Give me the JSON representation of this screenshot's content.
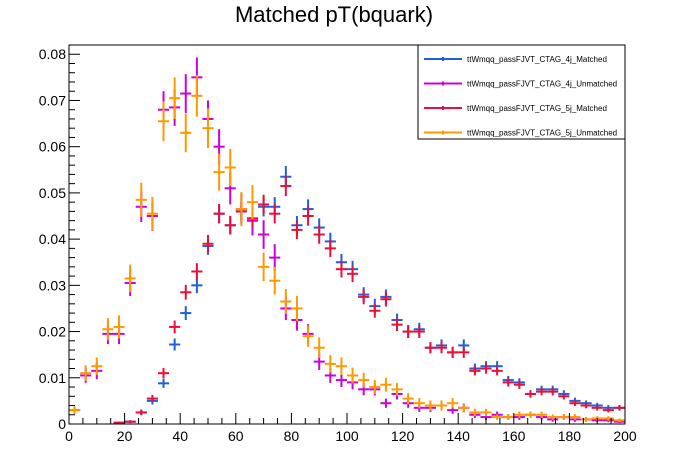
{
  "chart_data": {
    "type": "scatter",
    "title": "Matched pT(bquark)",
    "xlabel": "",
    "ylabel": "",
    "xlim": [
      0,
      200
    ],
    "ylim": [
      0,
      0.082
    ],
    "xticks": [
      "0",
      "20",
      "40",
      "60",
      "80",
      "100",
      "120",
      "140",
      "160",
      "180",
      "200"
    ],
    "yticks": [
      "0",
      "0.01",
      "0.02",
      "0.03",
      "0.04",
      "0.05",
      "0.06",
      "0.07",
      "0.08"
    ],
    "bin_width": 4,
    "legend_position": "top-right",
    "grid": false,
    "series": [
      {
        "name": "ttWmqq_passFJVT_CTAG_4j_Matched",
        "color": "#1f5fdc",
        "x": [
          22,
          26,
          30,
          34,
          38,
          42,
          46,
          50,
          54,
          58,
          62,
          66,
          70,
          74,
          78,
          82,
          86,
          90,
          94,
          98,
          102,
          106,
          110,
          114,
          118,
          122,
          126,
          130,
          134,
          138,
          142,
          146,
          150,
          154,
          158,
          162,
          166,
          170,
          174,
          178,
          182,
          186,
          190,
          194,
          198
        ],
        "y": [
          0.0005,
          0.0025,
          0.005,
          0.0088,
          0.0172,
          0.024,
          0.03,
          0.0385,
          0.0455,
          0.043,
          0.046,
          0.044,
          0.047,
          0.047,
          0.0535,
          0.043,
          0.0465,
          0.0425,
          0.0395,
          0.035,
          0.0335,
          0.028,
          0.0255,
          0.0275,
          0.0225,
          0.02,
          0.0205,
          0.0165,
          0.017,
          0.0155,
          0.017,
          0.012,
          0.0125,
          0.0125,
          0.0095,
          0.009,
          0.0065,
          0.0075,
          0.0075,
          0.0065,
          0.005,
          0.0045,
          0.004,
          0.0035,
          0.0035
        ],
        "err": [
          0.0003,
          0.0006,
          0.0008,
          0.001,
          0.0013,
          0.0015,
          0.0017,
          0.0019,
          0.0021,
          0.002,
          0.0021,
          0.002,
          0.0021,
          0.0021,
          0.0023,
          0.002,
          0.0021,
          0.002,
          0.0019,
          0.0018,
          0.0018,
          0.0016,
          0.0016,
          0.0016,
          0.0014,
          0.0014,
          0.0014,
          0.0012,
          0.0013,
          0.0012,
          0.0013,
          0.0011,
          0.0011,
          0.0011,
          0.0009,
          0.0009,
          0.0008,
          0.0008,
          0.0008,
          0.0008,
          0.0007,
          0.0006,
          0.0006,
          0.0006,
          0.0006
        ]
      },
      {
        "name": "ttWmqq_passFJVT_CTAG_4j_Unmatched",
        "color": "#cc00dd",
        "x": [
          2,
          6,
          10,
          14,
          18,
          22,
          26,
          30,
          34,
          38,
          42,
          46,
          50,
          54,
          58,
          62,
          66,
          70,
          74,
          78,
          82,
          86,
          90,
          94,
          98,
          102,
          106,
          110,
          114,
          118,
          122,
          126,
          130,
          134,
          138,
          142,
          146,
          150,
          154,
          158,
          162,
          166,
          170,
          174,
          178,
          182,
          186,
          190,
          194,
          198
        ],
        "y": [
          0.003,
          0.0105,
          0.0115,
          0.0195,
          0.0195,
          0.0305,
          0.047,
          0.045,
          0.068,
          0.0685,
          0.0715,
          0.075,
          0.066,
          0.06,
          0.051,
          0.0465,
          0.044,
          0.041,
          0.036,
          0.025,
          0.0225,
          0.0195,
          0.0135,
          0.0105,
          0.0095,
          0.009,
          0.0075,
          0.0075,
          0.0045,
          0.0065,
          0.0045,
          0.0035,
          0.0035,
          0.004,
          0.003,
          0.0035,
          0.002,
          0.0015,
          0.002,
          0.0015,
          0.0015,
          0.002,
          0.0015,
          0.001,
          0.0015,
          0.001,
          0.001,
          0.0008,
          0.0008,
          0.0005
        ],
        "err": [
          0.0008,
          0.0016,
          0.0018,
          0.0022,
          0.0022,
          0.0028,
          0.0033,
          0.0032,
          0.004,
          0.004,
          0.0042,
          0.0043,
          0.004,
          0.0038,
          0.0035,
          0.0033,
          0.0032,
          0.0031,
          0.0029,
          0.0025,
          0.0023,
          0.0021,
          0.0018,
          0.0016,
          0.0015,
          0.0015,
          0.0013,
          0.0013,
          0.001,
          0.0012,
          0.001,
          0.0009,
          0.0009,
          0.0009,
          0.0008,
          0.0009,
          0.0007,
          0.0006,
          0.0007,
          0.0006,
          0.0006,
          0.0007,
          0.0006,
          0.0005,
          0.0006,
          0.0005,
          0.0005,
          0.0004,
          0.0004,
          0.0003
        ]
      },
      {
        "name": "ttWmqq_passFJVT_CTAG_5j_Matched",
        "color": "#e8103a",
        "x": [
          18,
          22,
          26,
          30,
          34,
          38,
          42,
          46,
          50,
          54,
          58,
          62,
          66,
          70,
          74,
          78,
          82,
          86,
          90,
          94,
          98,
          102,
          106,
          110,
          114,
          118,
          122,
          126,
          130,
          134,
          138,
          142,
          146,
          150,
          154,
          158,
          162,
          166,
          170,
          174,
          178,
          182,
          186,
          190,
          194,
          198
        ],
        "y": [
          0.0003,
          0.0005,
          0.0025,
          0.0055,
          0.011,
          0.021,
          0.0285,
          0.033,
          0.039,
          0.0455,
          0.043,
          0.046,
          0.0445,
          0.0475,
          0.0455,
          0.0515,
          0.042,
          0.045,
          0.041,
          0.038,
          0.0335,
          0.0325,
          0.0275,
          0.0245,
          0.027,
          0.0215,
          0.02,
          0.02,
          0.0165,
          0.0165,
          0.0155,
          0.0155,
          0.0115,
          0.012,
          0.0115,
          0.009,
          0.0085,
          0.0065,
          0.007,
          0.007,
          0.006,
          0.0045,
          0.004,
          0.0035,
          0.003,
          0.0035
        ],
        "err": [
          0.0002,
          0.0003,
          0.0006,
          0.0008,
          0.0011,
          0.0014,
          0.0016,
          0.0018,
          0.0019,
          0.0021,
          0.002,
          0.0021,
          0.002,
          0.0021,
          0.0021,
          0.0022,
          0.002,
          0.0021,
          0.002,
          0.0019,
          0.0018,
          0.0018,
          0.0016,
          0.0015,
          0.0016,
          0.0014,
          0.0014,
          0.0014,
          0.0012,
          0.0012,
          0.0012,
          0.0012,
          0.001,
          0.0011,
          0.001,
          0.0009,
          0.0009,
          0.0008,
          0.0008,
          0.0008,
          0.0007,
          0.0006,
          0.0006,
          0.0006,
          0.0005,
          0.0006
        ]
      },
      {
        "name": "ttWmqq_passFJVT_CTAG_5j_Unmatched",
        "color": "#ff9900",
        "x": [
          2,
          6,
          10,
          14,
          18,
          22,
          26,
          30,
          34,
          38,
          42,
          46,
          50,
          54,
          58,
          62,
          66,
          70,
          74,
          78,
          82,
          86,
          90,
          94,
          98,
          102,
          106,
          110,
          114,
          118,
          122,
          126,
          130,
          134,
          138,
          142,
          146,
          150,
          154,
          158,
          162,
          166,
          170,
          174,
          178,
          182,
          186,
          190,
          194,
          198
        ],
        "y": [
          0.003,
          0.011,
          0.0125,
          0.0205,
          0.021,
          0.0315,
          0.0485,
          0.0455,
          0.0655,
          0.0705,
          0.063,
          0.071,
          0.064,
          0.0545,
          0.0555,
          0.0465,
          0.048,
          0.034,
          0.031,
          0.0265,
          0.025,
          0.019,
          0.0165,
          0.013,
          0.0125,
          0.0105,
          0.0095,
          0.008,
          0.0085,
          0.0075,
          0.0055,
          0.0045,
          0.004,
          0.004,
          0.0045,
          0.0035,
          0.0025,
          0.0025,
          0.0015,
          0.0015,
          0.002,
          0.002,
          0.002,
          0.0015,
          0.0015,
          0.0015,
          0.001,
          0.0012,
          0.0012,
          0.0008
        ],
        "err": [
          0.0008,
          0.0017,
          0.0019,
          0.0024,
          0.0025,
          0.003,
          0.0037,
          0.0036,
          0.0043,
          0.0045,
          0.0042,
          0.0045,
          0.0043,
          0.004,
          0.004,
          0.0037,
          0.0037,
          0.0031,
          0.003,
          0.0027,
          0.0027,
          0.0023,
          0.0022,
          0.0019,
          0.0019,
          0.0017,
          0.0016,
          0.0015,
          0.0015,
          0.0014,
          0.0012,
          0.0011,
          0.0011,
          0.0011,
          0.0011,
          0.001,
          0.0008,
          0.0008,
          0.0006,
          0.0006,
          0.0007,
          0.0007,
          0.0007,
          0.0006,
          0.0006,
          0.0006,
          0.0005,
          0.0005,
          0.0005,
          0.0004
        ]
      }
    ]
  }
}
